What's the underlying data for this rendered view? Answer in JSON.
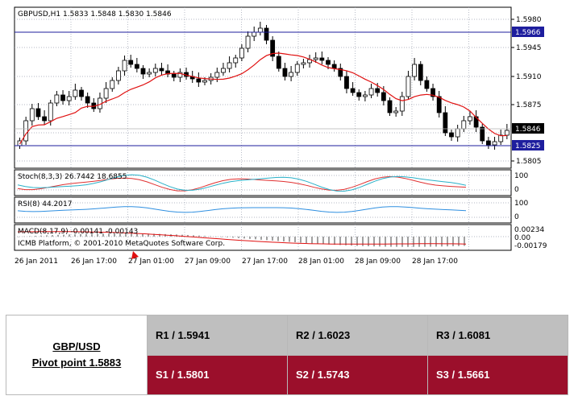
{
  "chart_header": "GBPUSD,H1  1.5833 1.5848 1.5830 1.5846",
  "price_axis_labels": [
    "1.5980",
    "1.5945",
    "1.5910",
    "1.5875",
    "1.5805"
  ],
  "price_tags": {
    "upper_line": "1.5966",
    "current": "1.5846",
    "lower_line": "1.5825"
  },
  "indicators": {
    "stochastic": {
      "label": "Stoch(8,3,3) 26.7442 18.6855",
      "scale": [
        "100",
        "0"
      ]
    },
    "rsi": {
      "label": "RSI(8) 44.2017",
      "scale": [
        "100",
        "0"
      ]
    },
    "macd": {
      "label": "MACD(8,17,9) -0.00141 -0.00143",
      "scale": [
        "0.00234",
        "0.00",
        "-0.00179"
      ]
    }
  },
  "copyright": "ICMB Platform, © 2001-2010 MetaQuotes Software Corp.",
  "time_axis_labels": [
    "26 Jan 2011",
    "26 Jan 17:00",
    "27 Jan 01:00",
    "27 Jan 09:00",
    "27 Jan 17:00",
    "28 Jan 01:00",
    "28 Jan 09:00",
    "28 Jan 17:00"
  ],
  "colors": {
    "horizontal_lines": "#1e1e9e",
    "moving_average": "#e01010",
    "stochastic_main": "#2ab0c8",
    "stochastic_signal": "#e03030",
    "rsi": "#2f8fe0",
    "macd_histogram": "#a0a0a0",
    "macd_signal": "#e01010",
    "resistance_bg": "#bfbfbf",
    "support_bg": "#9b0f2b"
  },
  "pivot_table": {
    "symbol": "GBP/USD",
    "pivot": "Pivot point 1.5883",
    "resistance": [
      "R1 / 1.5941",
      "R2 / 1.6023",
      "R3 / 1.6081"
    ],
    "support": [
      "S1 / 1.5801",
      "S2 / 1.5743",
      "S3 / 1.5661"
    ]
  }
}
